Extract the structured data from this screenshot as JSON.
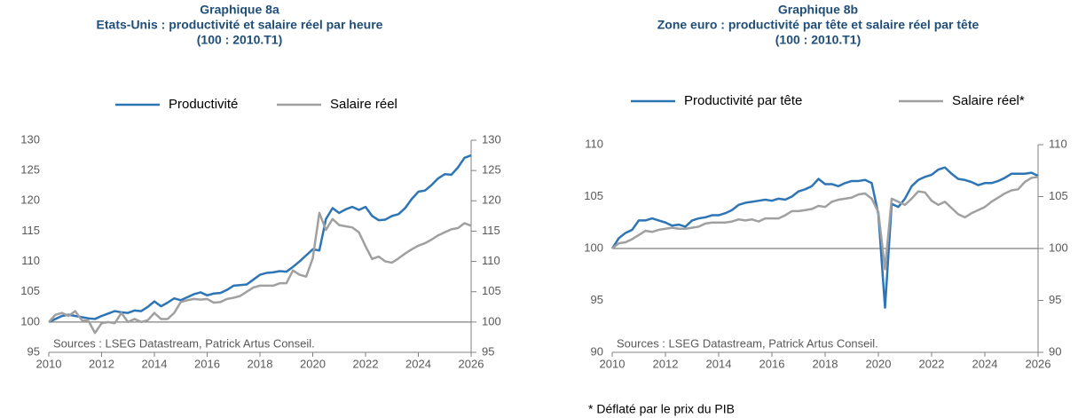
{
  "chart_data": [
    {
      "type": "line",
      "title": [
        "Graphique 8a",
        "Etats-Unis : productivité et salaire réel par heure",
        "(100 : 2010.T1)"
      ],
      "annotation": "Sources : LSEG Datastream, Patrick Artus Conseil.",
      "x": [
        2010,
        2010.25,
        2010.5,
        2010.75,
        2011,
        2011.25,
        2011.5,
        2011.75,
        2012,
        2012.25,
        2012.5,
        2012.75,
        2013,
        2013.25,
        2013.5,
        2013.75,
        2014,
        2014.25,
        2014.5,
        2014.75,
        2015,
        2015.25,
        2015.5,
        2015.75,
        2016,
        2016.25,
        2016.5,
        2016.75,
        2017,
        2017.25,
        2017.5,
        2017.75,
        2018,
        2018.25,
        2018.5,
        2018.75,
        2019,
        2019.25,
        2019.5,
        2019.75,
        2020,
        2020.25,
        2020.5,
        2020.75,
        2021,
        2021.25,
        2021.5,
        2021.75,
        2022,
        2022.25,
        2022.5,
        2022.75,
        2023,
        2023.25,
        2023.5,
        2023.75,
        2024,
        2024.25,
        2024.5,
        2024.75,
        2025,
        2025.25,
        2025.5,
        2025.75,
        2026
      ],
      "series": [
        {
          "name": "Productivité",
          "color": "#2e75b6",
          "values": [
            100,
            100.5,
            101.0,
            101.2,
            101.0,
            100.8,
            100.6,
            100.5,
            101.0,
            101.4,
            101.8,
            101.6,
            101.5,
            101.9,
            101.8,
            102.5,
            103.4,
            102.6,
            103.2,
            103.9,
            103.6,
            104.1,
            104.6,
            104.9,
            104.4,
            104.7,
            104.8,
            105.3,
            106.0,
            106.1,
            106.2,
            107.0,
            107.8,
            108.1,
            108.2,
            108.4,
            108.3,
            109.1,
            110.0,
            111.0,
            112.0,
            111.8,
            117.0,
            118.8,
            118.0,
            118.6,
            119.0,
            118.5,
            119.0,
            117.5,
            116.8,
            116.9,
            117.5,
            117.8,
            118.8,
            120.3,
            121.5,
            121.7,
            122.6,
            123.7,
            124.4,
            124.3,
            125.5,
            127.1,
            127.5
          ]
        },
        {
          "name": "Salaire réel",
          "color": "#a0a0a0",
          "values": [
            100,
            101.2,
            101.5,
            101.0,
            101.8,
            100.3,
            100.2,
            98.2,
            99.8,
            100.0,
            99.8,
            101.5,
            100.0,
            100.5,
            100.0,
            100.3,
            101.5,
            100.5,
            100.5,
            101.5,
            103.3,
            103.6,
            103.8,
            103.7,
            103.8,
            103.2,
            103.3,
            103.8,
            104.0,
            104.3,
            105.0,
            105.7,
            106.0,
            106.0,
            106.0,
            106.4,
            106.4,
            108.5,
            107.8,
            107.5,
            110.5,
            118.0,
            115.2,
            117.0,
            116.0,
            115.8,
            115.6,
            114.8,
            112.5,
            110.4,
            110.8,
            110.0,
            109.8,
            110.5,
            111.3,
            112.0,
            112.6,
            113.0,
            113.6,
            114.3,
            114.8,
            115.3,
            115.5,
            116.3,
            115.9
          ]
        }
      ],
      "xlim": [
        2010,
        2026
      ],
      "xticks": [
        2010,
        2012,
        2014,
        2016,
        2018,
        2020,
        2022,
        2024,
        2026
      ],
      "ylim": [
        95,
        130
      ],
      "yticks": [
        95,
        100,
        105,
        110,
        115,
        120,
        125,
        130
      ],
      "y2lim": [
        95,
        130
      ],
      "y2ticks": [
        95,
        100,
        105,
        110,
        115,
        120,
        125,
        130
      ],
      "hline": 100
    },
    {
      "type": "line",
      "title": [
        "Graphique 8b",
        "Zone euro : productivité par tête et salaire réel par tête",
        "(100 : 2010.T1)"
      ],
      "annotation": "Sources : LSEG Datastream, Patrick Artus Conseil.",
      "footnote": "* Déflaté par le prix du PIB",
      "x": [
        2010,
        2010.25,
        2010.5,
        2010.75,
        2011,
        2011.25,
        2011.5,
        2011.75,
        2012,
        2012.25,
        2012.5,
        2012.75,
        2013,
        2013.25,
        2013.5,
        2013.75,
        2014,
        2014.25,
        2014.5,
        2014.75,
        2015,
        2015.25,
        2015.5,
        2015.75,
        2016,
        2016.25,
        2016.5,
        2016.75,
        2017,
        2017.25,
        2017.5,
        2017.75,
        2018,
        2018.25,
        2018.5,
        2018.75,
        2019,
        2019.25,
        2019.5,
        2019.75,
        2020,
        2020.25,
        2020.5,
        2020.75,
        2021,
        2021.25,
        2021.5,
        2021.75,
        2022,
        2022.25,
        2022.5,
        2022.75,
        2023,
        2023.25,
        2023.5,
        2023.75,
        2024,
        2024.25,
        2024.5,
        2024.75,
        2025,
        2025.25,
        2025.5,
        2025.75,
        2026
      ],
      "series": [
        {
          "name": "Productivité par tête",
          "color": "#2e75b6",
          "values": [
            100,
            101.0,
            101.5,
            101.8,
            102.7,
            102.7,
            102.9,
            102.7,
            102.5,
            102.2,
            102.3,
            102.1,
            102.7,
            102.9,
            103.0,
            103.2,
            103.2,
            103.4,
            103.7,
            104.2,
            104.4,
            104.5,
            104.6,
            104.7,
            104.6,
            104.8,
            104.7,
            105.0,
            105.5,
            105.7,
            106.0,
            106.7,
            106.2,
            106.2,
            106.0,
            106.3,
            106.5,
            106.5,
            106.6,
            106.3,
            103.3,
            94.3,
            104.3,
            104.0,
            104.8,
            106.0,
            106.6,
            106.9,
            107.1,
            107.6,
            107.8,
            107.2,
            106.7,
            106.6,
            106.4,
            106.1,
            106.3,
            106.3,
            106.5,
            106.8,
            107.2,
            107.2,
            107.2,
            107.3,
            107.0
          ]
        },
        {
          "name": "Salaire réel*",
          "color": "#a0a0a0",
          "values": [
            100,
            100.5,
            100.6,
            100.9,
            101.3,
            101.7,
            101.6,
            101.8,
            101.9,
            102.0,
            101.9,
            101.9,
            102.0,
            102.1,
            102.4,
            102.5,
            102.5,
            102.5,
            102.6,
            102.8,
            102.7,
            102.8,
            102.6,
            102.9,
            102.9,
            102.9,
            103.2,
            103.6,
            103.6,
            103.7,
            103.8,
            104.1,
            104.0,
            104.5,
            104.7,
            104.8,
            104.9,
            105.2,
            105.3,
            104.8,
            103.5,
            98.0,
            104.8,
            104.5,
            104.2,
            104.8,
            105.5,
            105.4,
            104.6,
            104.2,
            104.5,
            103.9,
            103.3,
            103.0,
            103.4,
            103.7,
            104.0,
            104.5,
            104.9,
            105.3,
            105.6,
            105.7,
            106.4,
            106.8,
            106.9
          ]
        }
      ],
      "xlim": [
        2010,
        2026
      ],
      "xticks": [
        2010,
        2012,
        2014,
        2016,
        2018,
        2020,
        2022,
        2024,
        2026
      ],
      "ylim": [
        90,
        110
      ],
      "yticks": [
        90,
        95,
        100,
        105,
        110
      ],
      "y2lim": [
        90,
        110
      ],
      "y2ticks": [
        90,
        95,
        100,
        105,
        110
      ],
      "hline": 100
    }
  ]
}
